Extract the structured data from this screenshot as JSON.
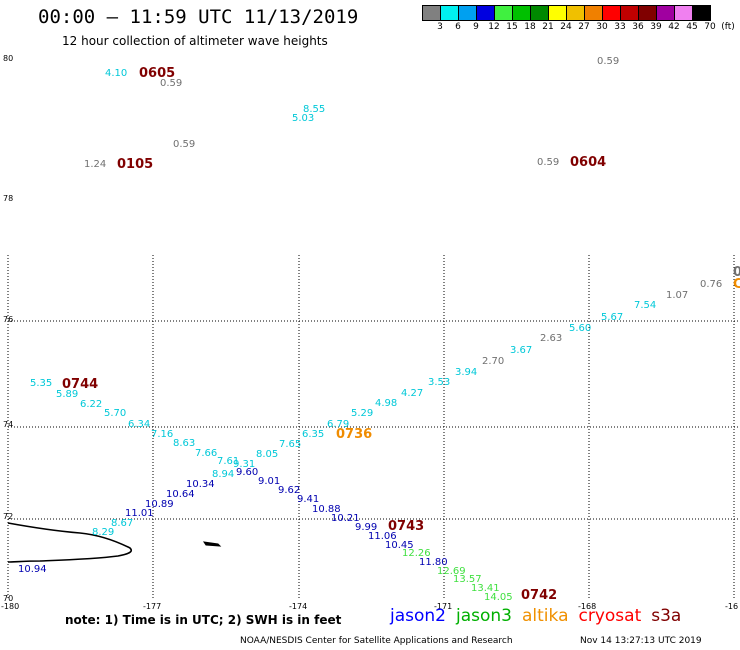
{
  "header": {
    "title": "00:00 – 11:59 UTC 11/13/2019",
    "subtitle": "12 hour collection of altimeter wave heights"
  },
  "legend": {
    "colors": [
      "#808080",
      "#00f0f0",
      "#00a0f0",
      "#0000e0",
      "#40f040",
      "#00c000",
      "#008800",
      "#ffff00",
      "#f0c000",
      "#f08000",
      "#ff0000",
      "#c00000",
      "#800000",
      "#a000a0",
      "#f080f0",
      "#000000"
    ],
    "labels": [
      "3",
      "6",
      "9",
      "12",
      "15",
      "18",
      "21",
      "24",
      "27",
      "30",
      "33",
      "36",
      "39",
      "42",
      "45",
      "70"
    ],
    "unit": "(ft)"
  },
  "axes": {
    "lat_labels_top": [
      "80",
      "78"
    ],
    "lat_labels_bottom": [
      "76",
      "74",
      "72",
      "70"
    ],
    "lon_labels": [
      "-180",
      "-177",
      "-174",
      "-171",
      "-168",
      "-16"
    ]
  },
  "wave_heights": [
    {
      "v": "4.10",
      "c": "#00c8d8"
    },
    {
      "v": "0.59",
      "c": "#707070"
    },
    {
      "v": "0.59",
      "c": "#707070"
    },
    {
      "v": "8.55",
      "c": "#00c8d8"
    },
    {
      "v": "5.03",
      "c": "#00c8d8"
    },
    {
      "v": "0.59",
      "c": "#707070"
    },
    {
      "v": "1.24",
      "c": "#707070"
    },
    {
      "v": "0.59",
      "c": "#707070"
    },
    {
      "v": "0.76",
      "c": "#707070"
    },
    {
      "v": "1.07",
      "c": "#707070"
    },
    {
      "v": "7.54",
      "c": "#00c8d8"
    },
    {
      "v": "5.67",
      "c": "#00c8d8"
    },
    {
      "v": "5.60",
      "c": "#00c8d8"
    },
    {
      "v": "2.63",
      "c": "#707070"
    },
    {
      "v": "3.67",
      "c": "#00c8d8"
    },
    {
      "v": "2.70",
      "c": "#707070"
    },
    {
      "v": "3.94",
      "c": "#00c8d8"
    },
    {
      "v": "3.53",
      "c": "#00c8d8"
    },
    {
      "v": "4.27",
      "c": "#00c8d8"
    },
    {
      "v": "4.98",
      "c": "#00c8d8"
    },
    {
      "v": "5.29",
      "c": "#00c8d8"
    },
    {
      "v": "6.79",
      "c": "#00c8d8"
    },
    {
      "v": "6.35",
      "c": "#00c8d8"
    },
    {
      "v": "7.65",
      "c": "#00c8d8"
    },
    {
      "v": "8.05",
      "c": "#00c8d8"
    },
    {
      "v": "9.31",
      "c": "#00c8d8"
    },
    {
      "v": "7.61",
      "c": "#00c8d8"
    },
    {
      "v": "7.66",
      "c": "#00c8d8"
    },
    {
      "v": "8.63",
      "c": "#00c8d8"
    },
    {
      "v": "7.16",
      "c": "#00c8d8"
    },
    {
      "v": "6.34",
      "c": "#00c8d8"
    },
    {
      "v": "5.70",
      "c": "#00c8d8"
    },
    {
      "v": "6.22",
      "c": "#00c8d8"
    },
    {
      "v": "5.89",
      "c": "#00c8d8"
    },
    {
      "v": "5.35",
      "c": "#00c8d8"
    },
    {
      "v": "9.60",
      "c": "#0000b0"
    },
    {
      "v": "8.94",
      "c": "#00c8d8"
    },
    {
      "v": "10.34",
      "c": "#0000b0"
    },
    {
      "v": "10.64",
      "c": "#0000b0"
    },
    {
      "v": "10.89",
      "c": "#0000b0"
    },
    {
      "v": "11.01",
      "c": "#0000b0"
    },
    {
      "v": "8.67",
      "c": "#00c8d8"
    },
    {
      "v": "8.29",
      "c": "#00c8d8"
    },
    {
      "v": "10.94",
      "c": "#0000b0"
    },
    {
      "v": "9.01",
      "c": "#0000b0"
    },
    {
      "v": "9.62",
      "c": "#0000b0"
    },
    {
      "v": "9.41",
      "c": "#0000b0"
    },
    {
      "v": "10.88",
      "c": "#0000b0"
    },
    {
      "v": "10.21",
      "c": "#0000b0"
    },
    {
      "v": "9.99",
      "c": "#0000b0"
    },
    {
      "v": "11.06",
      "c": "#0000b0"
    },
    {
      "v": "10.45",
      "c": "#0000b0"
    },
    {
      "v": "12.26",
      "c": "#40e040"
    },
    {
      "v": "11.80",
      "c": "#0000b0"
    },
    {
      "v": "12.69",
      "c": "#40e040"
    },
    {
      "v": "13.57",
      "c": "#40e040"
    },
    {
      "v": "13.41",
      "c": "#40e040"
    },
    {
      "v": "14.05",
      "c": "#40e040"
    }
  ],
  "time_labels": [
    {
      "t": "0605",
      "c": "#800000"
    },
    {
      "t": "0105",
      "c": "#800000"
    },
    {
      "t": "0604",
      "c": "#800000"
    },
    {
      "t": "0744",
      "c": "#800000"
    },
    {
      "t": "0736",
      "c": "#f08c00"
    },
    {
      "t": "0743",
      "c": "#800000"
    },
    {
      "t": "0742",
      "c": "#800000"
    },
    {
      "t": "0",
      "c": "#707070"
    },
    {
      "t": "C",
      "c": "#f08c00"
    }
  ],
  "footer": {
    "note": "note:  1) Time is in UTC;  2) SWH is in feet",
    "satellites": [
      {
        "name": "jason2",
        "color": "#0000ff"
      },
      {
        "name": "jason3",
        "color": "#00b000"
      },
      {
        "name": "altika",
        "color": "#f09000"
      },
      {
        "name": "cryosat",
        "color": "#ff0000"
      },
      {
        "name": "s3a",
        "color": "#800000"
      }
    ],
    "credit": "NOAA/NESDIS Center for Satellite Applications and Research",
    "timestamp": "Nov 14 13:27:13 UTC 2019"
  }
}
